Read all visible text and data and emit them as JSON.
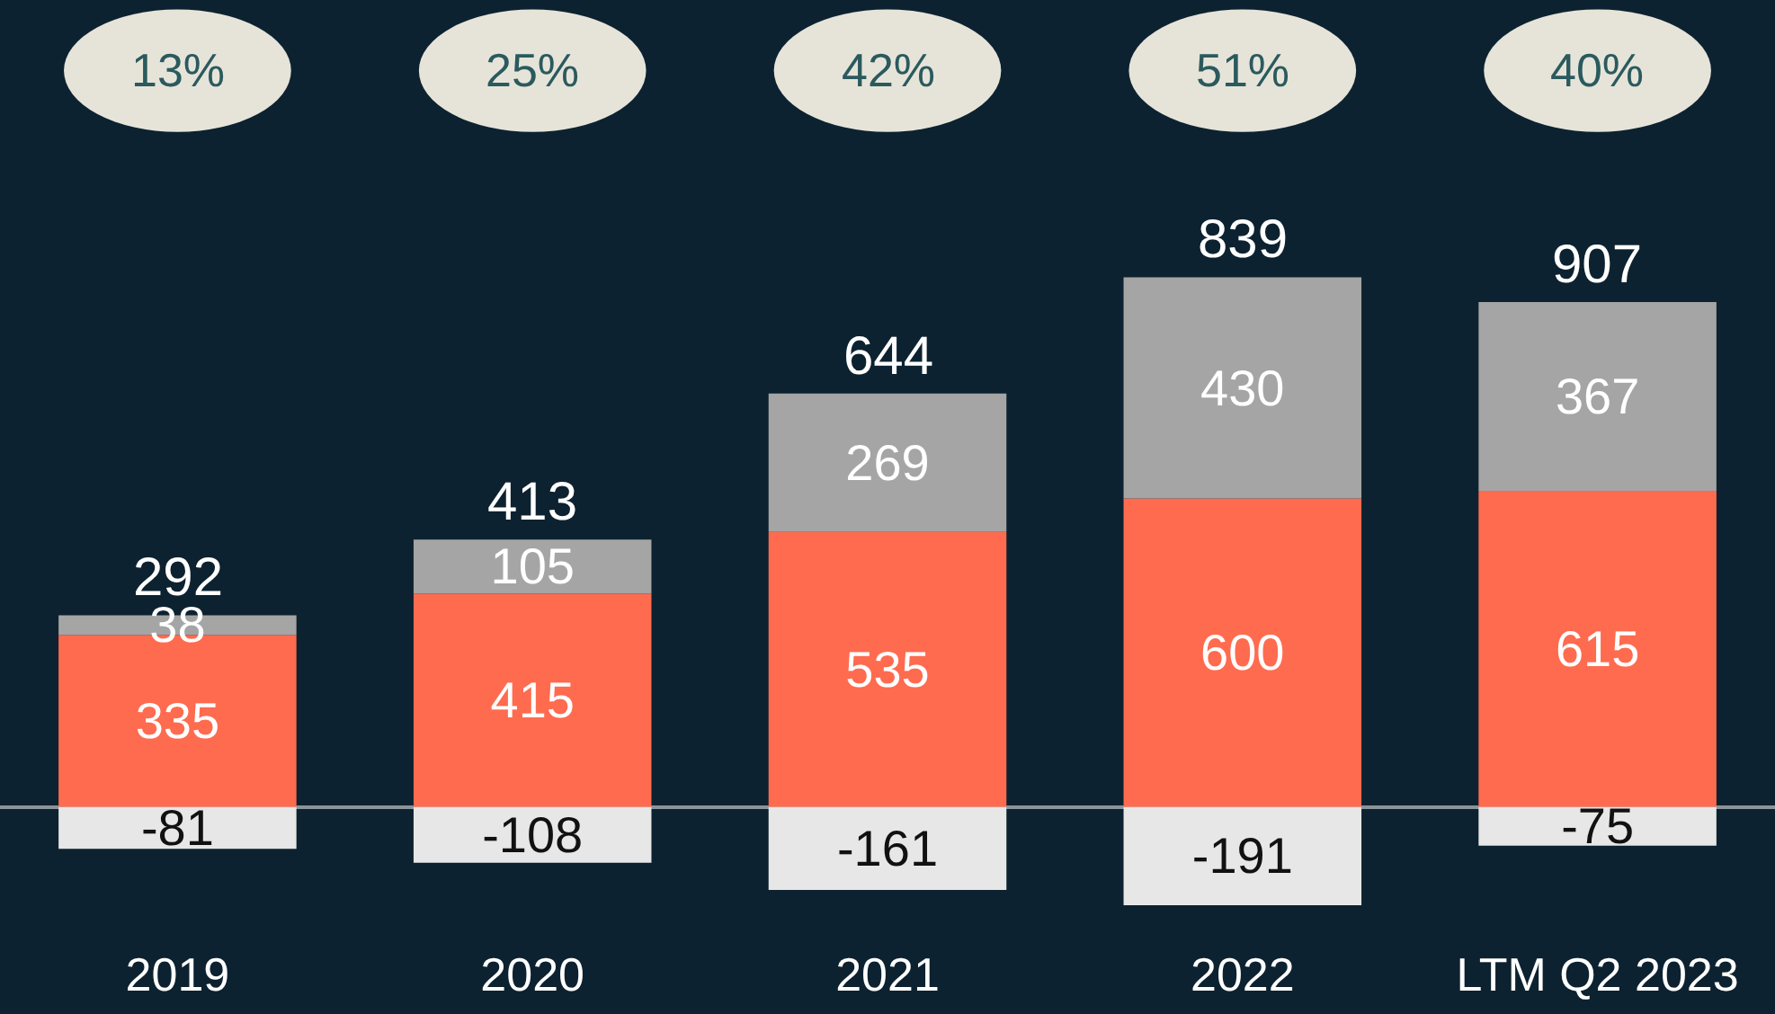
{
  "chart_data": {
    "type": "bar",
    "stacked": true,
    "categories": [
      "2019",
      "2020",
      "2021",
      "2022",
      "LTM Q2 2023"
    ],
    "series": [
      {
        "color": "#ff6b4f",
        "values": [
          335,
          415,
          535,
          600,
          615
        ]
      },
      {
        "color": "#a5a5a5",
        "values": [
          38,
          105,
          269,
          430,
          367
        ]
      },
      {
        "color": "#e7e7e7",
        "values": [
          -81,
          -108,
          -161,
          -191,
          -75
        ]
      }
    ],
    "totals": [
      "292",
      "413",
      "644",
      "839",
      "907"
    ],
    "annotations": [
      "13%",
      "25%",
      "42%",
      "51%",
      "40%"
    ],
    "data_labels": true,
    "legend": false,
    "grid": false
  }
}
